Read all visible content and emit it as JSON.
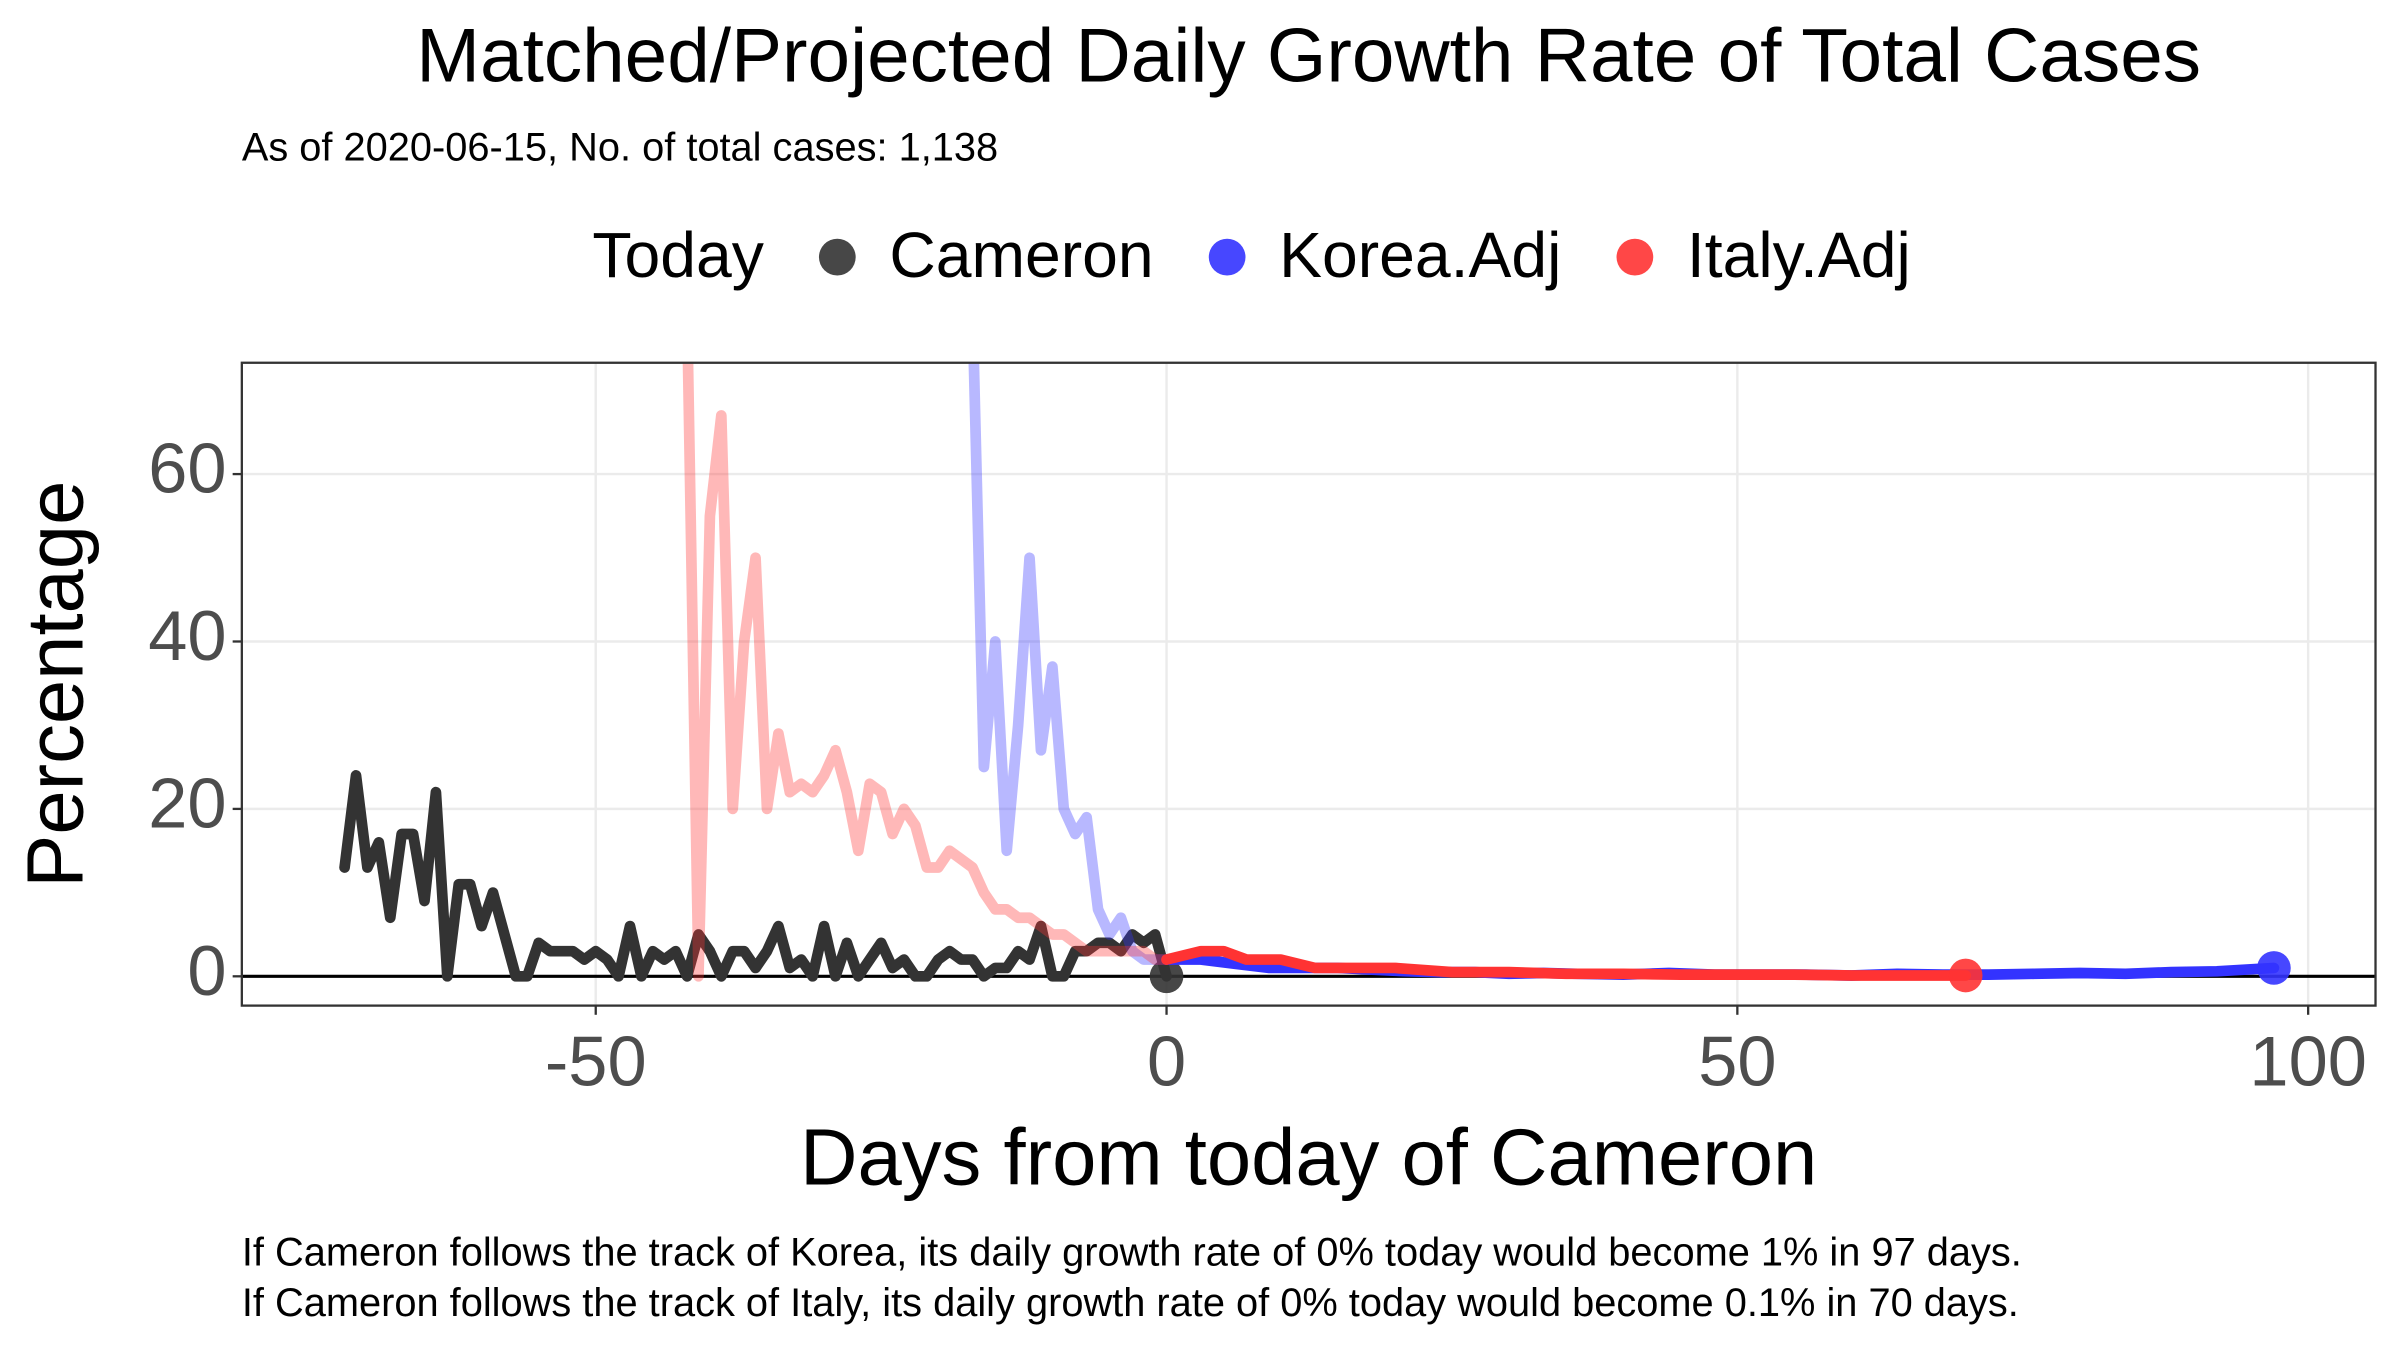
{
  "chart_data": {
    "type": "line",
    "title": "Matched/Projected Daily Growth Rate of Total Cases",
    "subtitle": "As of 2020-06-15, No. of total cases: 1,138",
    "legend_title": "Today",
    "xlabel": "Days from today of Cameron",
    "ylabel": "Percentage",
    "notes": [
      "If Cameron follows the track of Korea, its daily growth rate of 0% today would become 1% in 97 days.",
      "If Cameron follows the track of Italy, its daily growth rate of 0% today would become 0.1% in 70 days."
    ],
    "xlim": [
      -81,
      105.9
    ],
    "ylim": [
      -3.5,
      73.3
    ],
    "xticks": [
      -50,
      0,
      50,
      100
    ],
    "yticks": [
      0,
      20,
      40,
      60
    ],
    "grid": true,
    "series": [
      {
        "name": "Cameron",
        "color": "#333333",
        "x": [
          -72,
          -71,
          -70,
          -69,
          -68,
          -67,
          -66,
          -65,
          -64,
          -63,
          -62,
          -61,
          -60,
          -59,
          -58,
          -57,
          -56,
          -55,
          -54,
          -53,
          -52,
          -51,
          -50,
          -49,
          -48,
          -47,
          -46,
          -45,
          -44,
          -43,
          -42,
          -41,
          -40,
          -39,
          -38,
          -37,
          -36,
          -35,
          -34,
          -33,
          -32,
          -31,
          -30,
          -29,
          -28,
          -27,
          -26,
          -25,
          -24,
          -23,
          -22,
          -21,
          -20,
          -19,
          -18,
          -17,
          -16,
          -15,
          -14,
          -13,
          -12,
          -11,
          -10,
          -9,
          -8,
          -7,
          -6,
          -5,
          -4,
          -3,
          -2,
          -1,
          0
        ],
        "values": [
          13,
          24,
          13,
          16,
          7,
          17,
          17,
          9,
          22,
          0,
          11,
          11,
          6,
          10,
          5,
          0,
          0,
          4,
          3,
          3,
          3,
          2,
          3,
          2,
          0,
          6,
          0,
          3,
          2,
          3,
          0,
          5,
          3,
          0,
          3,
          3,
          1,
          3,
          6,
          1,
          2,
          0,
          6,
          0,
          4,
          0,
          2,
          4,
          1,
          2,
          0,
          0,
          2,
          3,
          2,
          2,
          0,
          1,
          1,
          3,
          2,
          6,
          0,
          0,
          3,
          3,
          4,
          4,
          3,
          5,
          4,
          5,
          0
        ]
      },
      {
        "name": "Korea.Adj",
        "color": "#3333ff",
        "x": [
          -17,
          -16,
          -15,
          -14,
          -13,
          -12,
          -11,
          -10,
          -9,
          -8,
          -7,
          -6,
          -5,
          -4,
          -3,
          -2,
          -1,
          0,
          3,
          6,
          9,
          12,
          15,
          18,
          21,
          24,
          27,
          30,
          33,
          36,
          40,
          44,
          48,
          52,
          56,
          60,
          64,
          68,
          72,
          76,
          80,
          84,
          88,
          92,
          97
        ],
        "values": [
          80,
          25,
          40,
          15,
          30,
          50,
          27,
          37,
          20,
          17,
          19,
          8,
          5,
          7,
          3,
          2,
          2,
          2,
          2,
          1.5,
          1,
          1,
          1,
          0.8,
          0.6,
          0.5,
          0.5,
          0.3,
          0.4,
          0.3,
          0.2,
          0.4,
          0.2,
          0.2,
          0.2,
          0.1,
          0.3,
          0.2,
          0.2,
          0.3,
          0.4,
          0.3,
          0.5,
          0.6,
          1
        ]
      },
      {
        "name": "Italy.Adj",
        "color": "#ff3333",
        "x": [
          -42,
          -41,
          -40,
          -39,
          -38,
          -37,
          -36,
          -35,
          -34,
          -33,
          -32,
          -31,
          -30,
          -29,
          -28,
          -27,
          -26,
          -25,
          -24,
          -23,
          -22,
          -21,
          -20,
          -19,
          -18,
          -17,
          -16,
          -15,
          -14,
          -13,
          -12,
          -11,
          -10,
          -9,
          -8,
          -7,
          -6,
          -5,
          -4,
          -3,
          -2,
          -1,
          0,
          3,
          5,
          7,
          10,
          13,
          16,
          20,
          25,
          30,
          35,
          40,
          45,
          50,
          55,
          60,
          65,
          70
        ],
        "values": [
          80,
          0,
          55,
          67,
          20,
          40,
          50,
          20,
          29,
          22,
          23,
          22,
          24,
          27,
          22,
          15,
          23,
          22,
          17,
          20,
          18,
          13,
          13,
          15,
          14,
          13,
          10,
          8,
          8,
          7,
          7,
          6,
          5,
          5,
          4,
          3,
          3,
          3,
          3,
          3,
          3,
          2,
          2,
          3,
          3,
          2,
          2,
          1,
          1,
          1,
          0.5,
          0.5,
          0.3,
          0.3,
          0.2,
          0.2,
          0.2,
          0.1,
          0.1,
          0.1
        ]
      }
    ]
  }
}
